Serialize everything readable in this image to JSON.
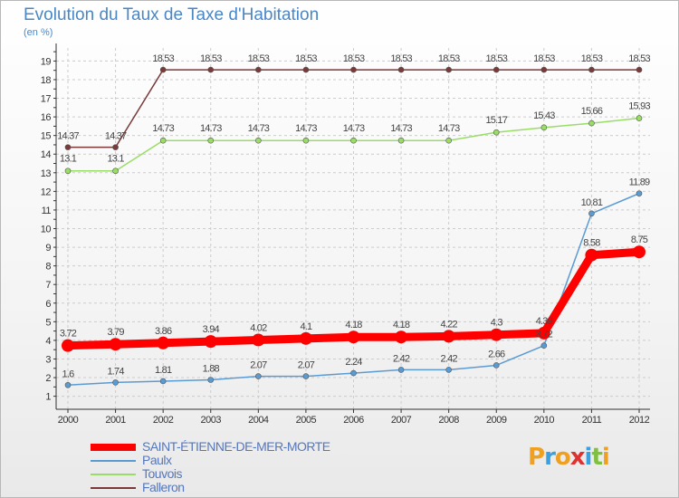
{
  "chart_data": {
    "type": "line",
    "title": "Evolution du Taux de Taxe d'Habitation",
    "subtitle": "(en %)",
    "x": [
      "2000",
      "2001",
      "2002",
      "2003",
      "2004",
      "2005",
      "2006",
      "2007",
      "2008",
      "2009",
      "2010",
      "2011",
      "2012"
    ],
    "y_ticks": [
      "1",
      "2",
      "3",
      "4",
      "5",
      "6",
      "7",
      "8",
      "9",
      "10",
      "11",
      "12",
      "13",
      "14",
      "15",
      "16",
      "17",
      "18",
      "19"
    ],
    "ylim": [
      0.3,
      19.7
    ],
    "grid": true,
    "series": [
      {
        "name": "SAINT-ÉTIENNE-DE-MER-MORTE",
        "color": "#ff0000",
        "values": [
          3.72,
          3.79,
          3.86,
          3.94,
          4.02,
          4.1,
          4.18,
          4.18,
          4.22,
          4.3,
          4.39,
          8.58,
          8.75
        ],
        "labels": [
          "3.72",
          "3.79",
          "3.86",
          "3.94",
          "4.02",
          "4.1",
          "4.18",
          "4.18",
          "4.22",
          "4.3",
          "4.39",
          "8.58",
          "8.75"
        ]
      },
      {
        "name": "Paulx",
        "color": "#5a9bd4",
        "values": [
          1.6,
          1.74,
          1.81,
          1.88,
          2.07,
          2.07,
          2.24,
          2.42,
          2.42,
          2.66,
          3.72,
          10.81,
          11.89
        ],
        "labels": [
          "1.6",
          "1.74",
          "1.81",
          "1.88",
          "2.07",
          "2.07",
          "2.24",
          "2.42",
          "2.42",
          "2.66",
          "3.72",
          "10.81",
          "11.89"
        ]
      },
      {
        "name": "Touvois",
        "color": "#99dd66",
        "values": [
          13.1,
          13.1,
          14.73,
          14.73,
          14.73,
          14.73,
          14.73,
          14.73,
          14.73,
          15.17,
          15.43,
          15.66,
          15.93
        ],
        "labels": [
          "13.1",
          "13.1",
          "14.73",
          "14.73",
          "14.73",
          "14.73",
          "14.73",
          "14.73",
          "14.73",
          "15.17",
          "15.43",
          "15.66",
          "15.93"
        ]
      },
      {
        "name": "Falleron",
        "color": "#7a3a3a",
        "values": [
          14.37,
          14.37,
          18.53,
          18.53,
          18.53,
          18.53,
          18.53,
          18.53,
          18.53,
          18.53,
          18.53,
          18.53,
          18.53
        ],
        "labels": [
          "14.37",
          "14.37",
          "18.53",
          "18.53",
          "18.53",
          "18.53",
          "18.53",
          "18.53",
          "18.53",
          "18.53",
          "18.53",
          "18.53",
          "18.53"
        ]
      }
    ]
  },
  "legend": [
    {
      "label": "SAINT-ÉTIENNE-DE-MER-MORTE",
      "color": "#ff0000"
    },
    {
      "label": "Paulx",
      "color": "#5a9bd4"
    },
    {
      "label": "Touvois",
      "color": "#99dd66"
    },
    {
      "label": "Falleron",
      "color": "#7a3a3a"
    }
  ],
  "logo": {
    "text": "Proxiti",
    "letters": [
      "P",
      "r",
      "o",
      "x",
      "i",
      "t",
      "i"
    ],
    "colors": [
      "#f0a020",
      "#3aa0e0",
      "#f0a020",
      "#e03030",
      "#3aa0e0",
      "#80c040",
      "#f0a020"
    ]
  }
}
